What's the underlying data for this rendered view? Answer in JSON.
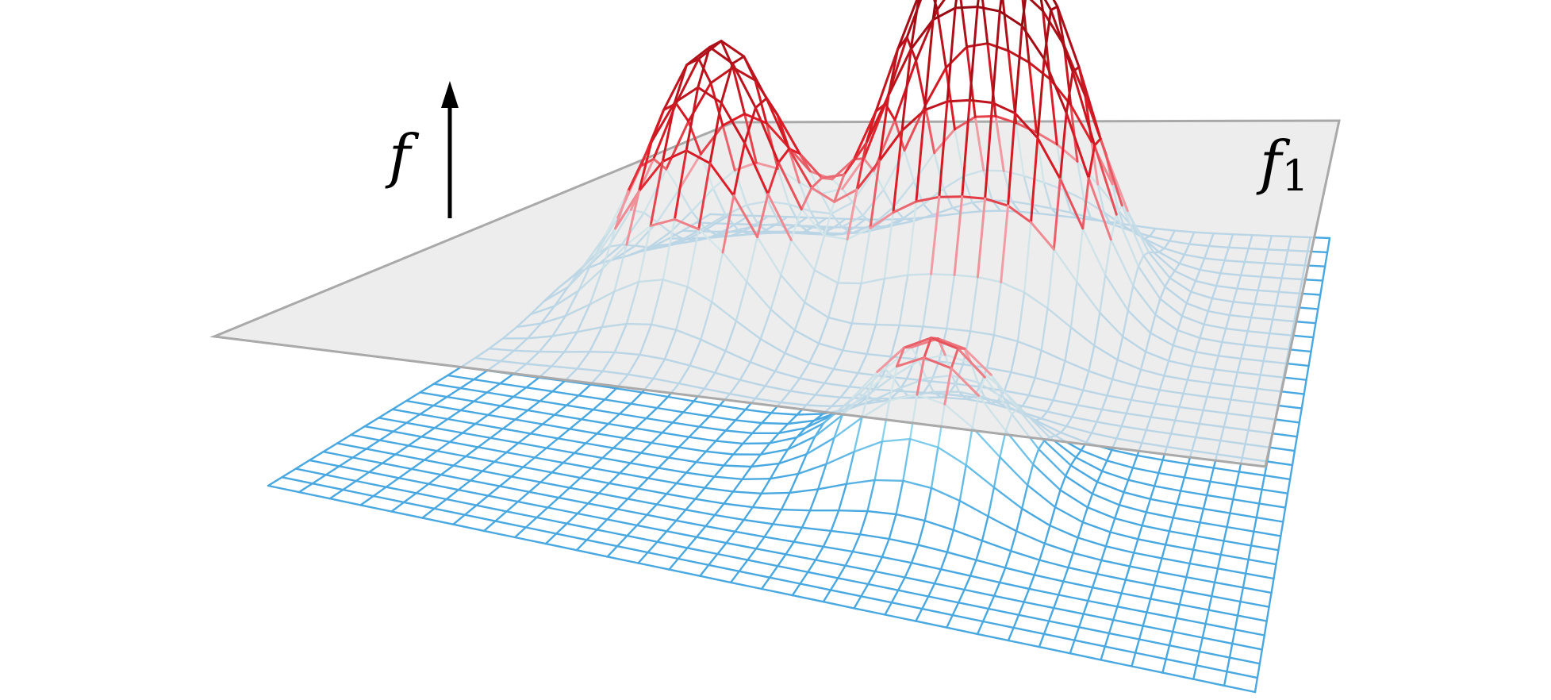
{
  "labels": {
    "axis": "f",
    "plane_base": "f",
    "plane_subscript": "1"
  },
  "surface": {
    "grid_rows": 32,
    "grid_cols": 32,
    "peaks": [
      {
        "u": 0.19,
        "v": 0.7,
        "height": 1.0,
        "width": 0.085
      },
      {
        "u": 0.46,
        "v": 0.8,
        "height": 1.12,
        "width": 0.08
      },
      {
        "u": 0.61,
        "v": 0.79,
        "height": 1.02,
        "width": 0.078
      },
      {
        "u": 0.6,
        "v": 0.34,
        "height": 0.52,
        "width": 0.08
      }
    ],
    "colors": {
      "base": "#4aa8e0",
      "mid_low": "#a6e6f2",
      "mid_high": "#f2a0a8",
      "top": "#e01e28",
      "deep": "#9a0a12"
    }
  },
  "plane": {
    "fill": "#e6e6e6",
    "stroke": "#a9a9a9",
    "level": 0.4
  },
  "arrow_color": "#000000"
}
